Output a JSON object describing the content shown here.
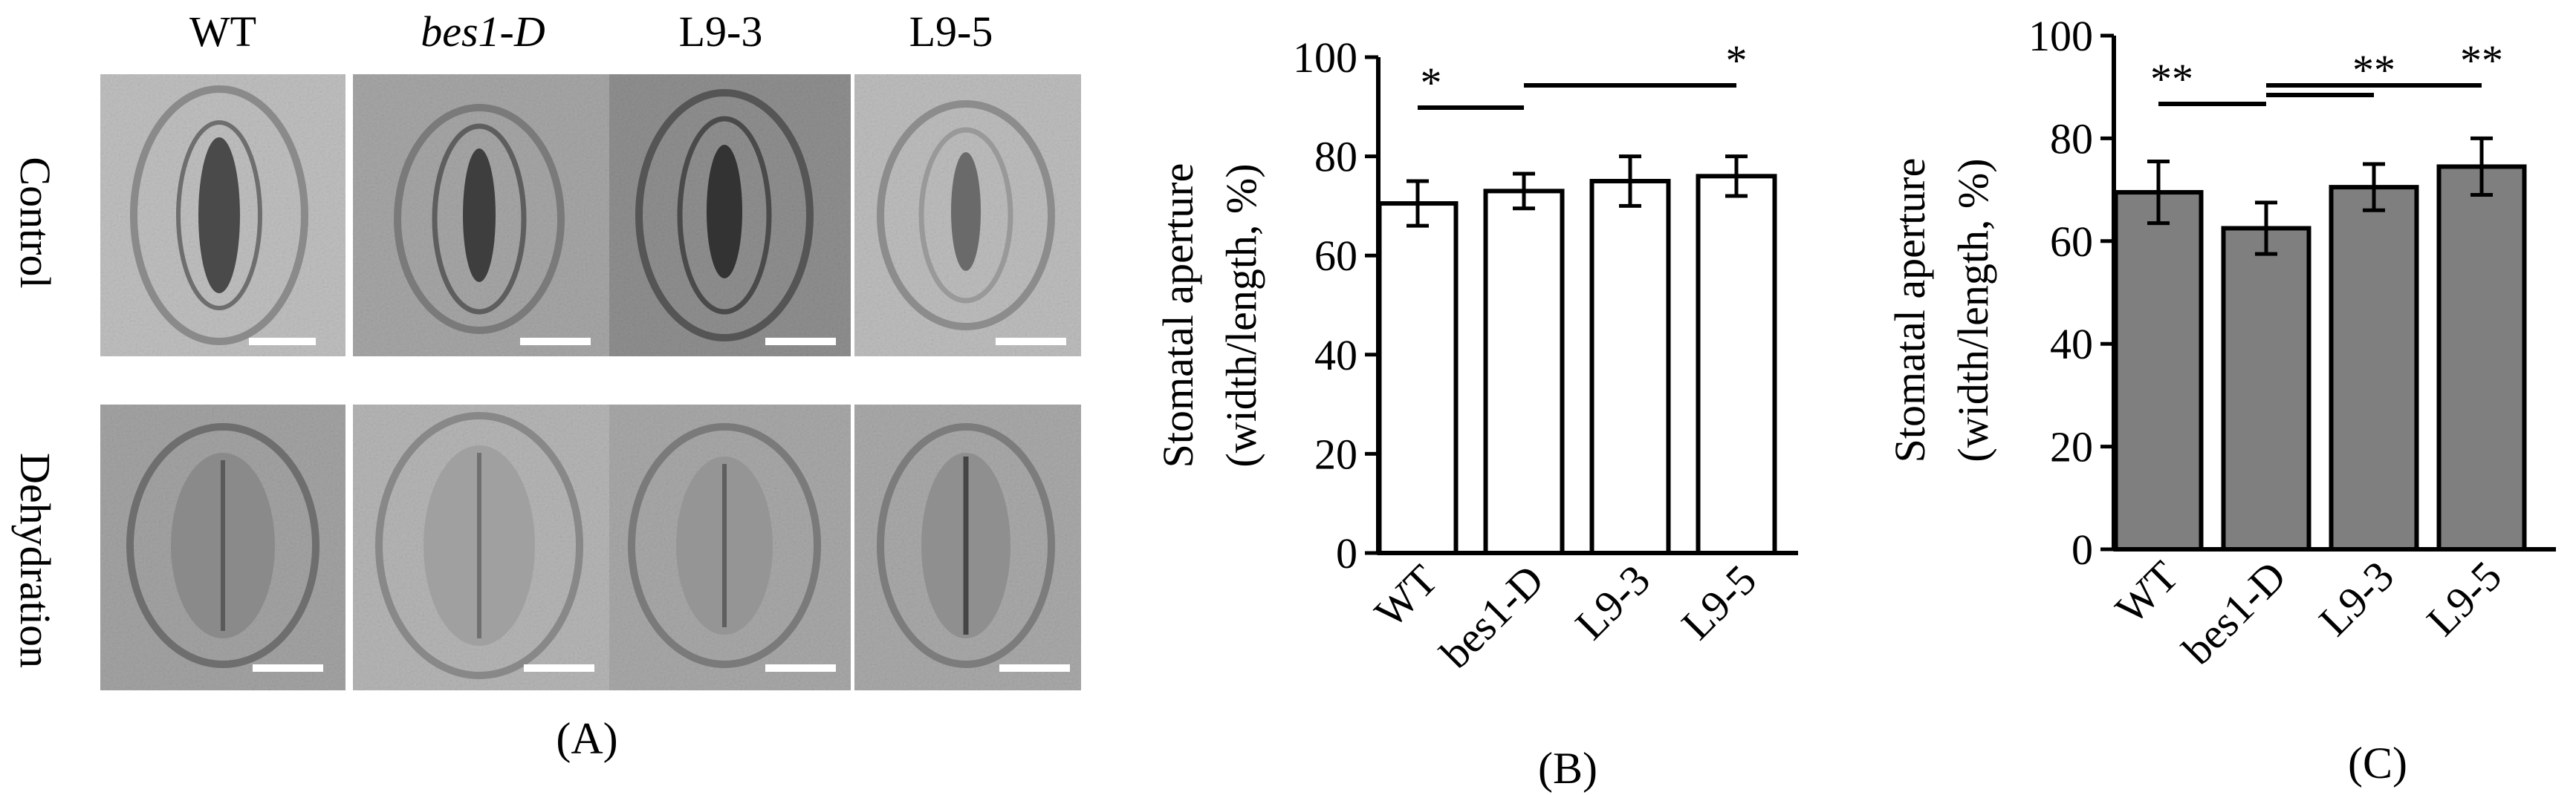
{
  "panel_a": {
    "label": "(A)",
    "genotypes": [
      "WT",
      "bes1-D",
      "L9-3",
      "L9-5"
    ],
    "italic_genotype": "bes1-D",
    "rows": [
      "Control",
      "Dehydration"
    ]
  },
  "chart_data": [
    {
      "type": "bar",
      "panel_label": "(B)",
      "categories": [
        "WT",
        "bes1-D",
        "L9-3",
        "L9-5"
      ],
      "values": [
        70.5,
        73.0,
        75.0,
        76.0
      ],
      "errors": [
        4.5,
        3.5,
        5.0,
        4.0
      ],
      "ylabel_line1": "Stomatal aperture",
      "ylabel_line2": "(width/length, %)",
      "ylim": [
        0,
        100
      ],
      "yticks": [
        0,
        20,
        40,
        60,
        80,
        100
      ],
      "bar_color": "#ffffff",
      "significance": [
        {
          "from": "WT",
          "to": "bes1-D",
          "label": "*"
        },
        {
          "from": "bes1-D",
          "to": "L9-5",
          "label": "*"
        }
      ]
    },
    {
      "type": "bar",
      "panel_label": "(C)",
      "categories": [
        "WT",
        "bes1-D",
        "L9-3",
        "L9-5"
      ],
      "values": [
        69.5,
        62.5,
        70.5,
        74.5
      ],
      "errors": [
        6.0,
        5.0,
        4.5,
        5.5
      ],
      "ylabel_line1": "Stomatal aperture",
      "ylabel_line2": "(width/length, %)",
      "ylim": [
        0,
        100
      ],
      "yticks": [
        0,
        20,
        40,
        60,
        80,
        100
      ],
      "bar_color": "#7f7f7f",
      "significance": [
        {
          "from": "WT",
          "to": "bes1-D",
          "label": "**"
        },
        {
          "from": "bes1-D",
          "to": "L9-3",
          "label": "**"
        },
        {
          "from": "bes1-D",
          "to": "L9-5",
          "label": "**"
        }
      ]
    }
  ]
}
